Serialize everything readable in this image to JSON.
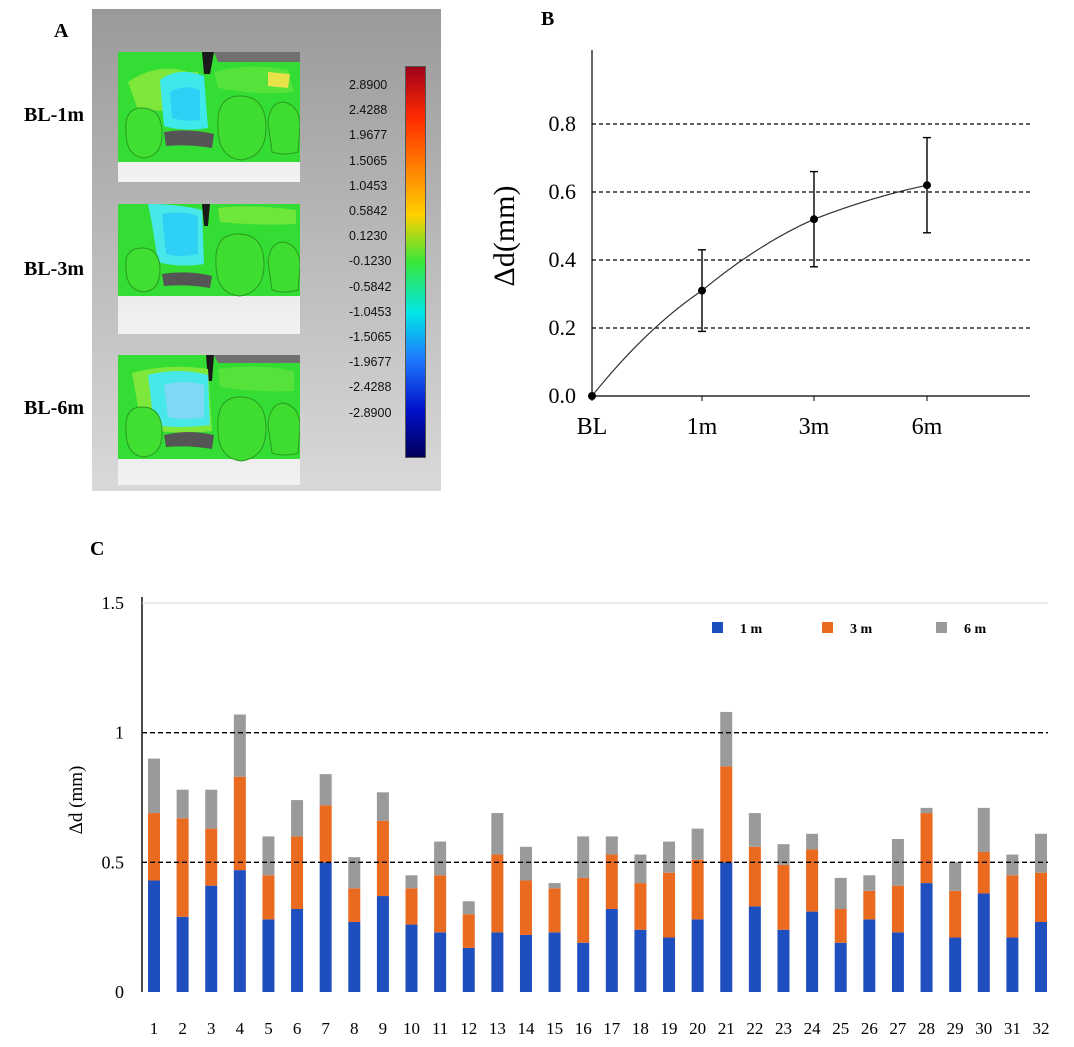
{
  "panels": {
    "a": {
      "label": "A",
      "rows": [
        "BL-1m",
        "BL-3m",
        "BL-6m"
      ],
      "colorbar_ticks": [
        "2.8900",
        "2.4288",
        "1.9677",
        "1.5065",
        "1.0453",
        "0.5842",
        "0.1230",
        "-0.1230",
        "-0.5842",
        "-1.0453",
        "-1.5065",
        "-1.9677",
        "-2.4288",
        "-2.8900"
      ],
      "colorbar_colors": [
        "#a0001a",
        "#ff2a00",
        "#ff7a00",
        "#ffd000",
        "#39e639",
        "#00e6e6",
        "#1e78ff",
        "#0010c8",
        "#00005a"
      ]
    },
    "b": {
      "label": "B"
    },
    "c": {
      "label": "C"
    }
  },
  "chart_data": [
    {
      "type": "line",
      "panel": "B",
      "categories": [
        "BL",
        "1m",
        "3m",
        "6m"
      ],
      "values": [
        0.0,
        0.31,
        0.52,
        0.62
      ],
      "error": [
        0,
        0.12,
        0.14,
        0.14
      ],
      "ylabel": "Δd(mm)",
      "yticks": [
        "0.0",
        "0.2",
        "0.4",
        "0.6",
        "0.8"
      ],
      "ylim": [
        0,
        1.0
      ],
      "grid": "dashed horizontal at 0.2, 0.4, 0.6, 0.8"
    },
    {
      "type": "bar",
      "panel": "C",
      "stacked": true,
      "categories": [
        "1",
        "2",
        "3",
        "4",
        "5",
        "6",
        "7",
        "8",
        "9",
        "10",
        "11",
        "12",
        "13",
        "14",
        "15",
        "16",
        "17",
        "18",
        "19",
        "20",
        "21",
        "22",
        "23",
        "24",
        "25",
        "26",
        "27",
        "28",
        "29",
        "30",
        "31",
        "32"
      ],
      "series": [
        {
          "name": "1 m",
          "color": "#1f4fbf",
          "values": [
            0.43,
            0.29,
            0.41,
            0.47,
            0.28,
            0.32,
            0.5,
            0.27,
            0.37,
            0.26,
            0.23,
            0.17,
            0.23,
            0.22,
            0.23,
            0.19,
            0.32,
            0.24,
            0.21,
            0.28,
            0.5,
            0.33,
            0.24,
            0.31,
            0.19,
            0.28,
            0.23,
            0.42,
            0.21,
            0.38,
            0.21,
            0.27
          ]
        },
        {
          "name": "3 m",
          "color": "#ea6a1f",
          "values": [
            0.26,
            0.38,
            0.22,
            0.36,
            0.17,
            0.28,
            0.22,
            0.13,
            0.29,
            0.14,
            0.22,
            0.13,
            0.3,
            0.21,
            0.17,
            0.25,
            0.21,
            0.18,
            0.25,
            0.23,
            0.37,
            0.23,
            0.25,
            0.24,
            0.13,
            0.11,
            0.18,
            0.27,
            0.18,
            0.16,
            0.24,
            0.19
          ]
        },
        {
          "name": "6 m",
          "color": "#9a9a9a",
          "values": [
            0.21,
            0.11,
            0.15,
            0.24,
            0.15,
            0.14,
            0.12,
            0.12,
            0.11,
            0.05,
            0.13,
            0.05,
            0.16,
            0.13,
            0.02,
            0.16,
            0.07,
            0.11,
            0.12,
            0.12,
            0.21,
            0.13,
            0.08,
            0.06,
            0.12,
            0.06,
            0.18,
            0.02,
            0.11,
            0.17,
            0.08,
            0.15
          ]
        }
      ],
      "ylabel": "Δd  (mm)",
      "yticks": [
        "0",
        "0.5",
        "1",
        "1.5"
      ],
      "ylim": [
        0,
        1.5
      ],
      "grid": "dashed horizontal at 0.5 and 1",
      "legend": "top-right"
    }
  ]
}
